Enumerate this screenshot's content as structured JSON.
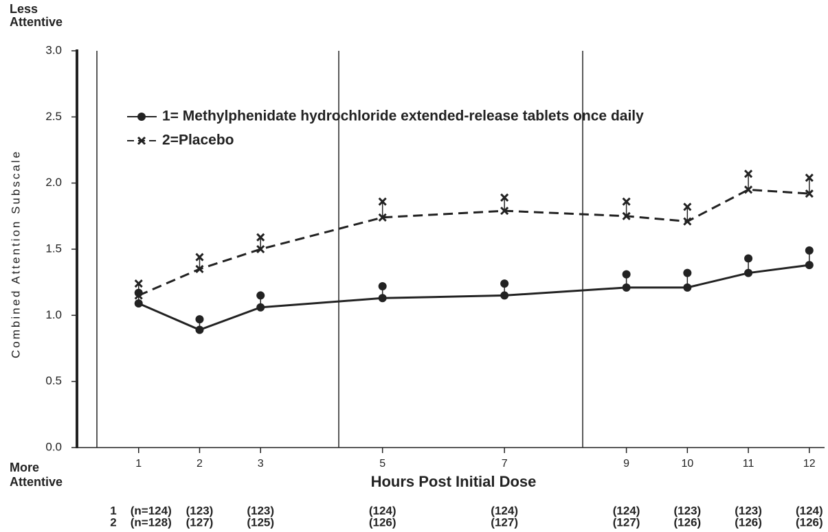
{
  "chart_data": {
    "type": "line",
    "top_label": [
      "Less",
      "Attentive"
    ],
    "bottom_label": [
      "More",
      "Attentive"
    ],
    "y_label": "Combined Attention Subscale",
    "x_label": "Hours Post Initial Dose",
    "x": [
      1,
      2,
      3,
      5,
      7,
      9,
      10,
      11,
      12
    ],
    "xlim": [
      0,
      12.25
    ],
    "xticks": [
      1,
      2,
      3,
      5,
      7,
      9,
      10,
      11,
      12
    ],
    "ylim": [
      0,
      3
    ],
    "yticks": [
      {
        "value": 0,
        "label": "0.0"
      },
      {
        "value": 0.5,
        "label": "0.5"
      },
      {
        "value": 1,
        "label": "1.0"
      },
      {
        "value": 1.5,
        "label": "1.5"
      },
      {
        "value": 2,
        "label": "2.0"
      },
      {
        "value": 2.5,
        "label": "2.5"
      },
      {
        "value": 3,
        "label": "3.0"
      }
    ],
    "series": [
      {
        "name": "1= Methylphenidate hydrochloride extended-release tablets once daily",
        "color": "#222222",
        "line_style": "solid",
        "marker": "circle",
        "values": [
          1.09,
          0.89,
          1.06,
          1.13,
          1.15,
          1.21,
          1.21,
          1.32,
          1.38
        ],
        "errors": [
          0.08,
          0.08,
          0.09,
          0.09,
          0.09,
          0.1,
          0.11,
          0.11,
          0.11
        ]
      },
      {
        "name": "2=Placebo",
        "color": "#222222",
        "line_style": "dashed",
        "marker": "x",
        "values": [
          1.15,
          1.35,
          1.5,
          1.74,
          1.79,
          1.75,
          1.71,
          1.95,
          1.92
        ],
        "errors": [
          0.09,
          0.09,
          0.09,
          0.12,
          0.1,
          0.11,
          0.11,
          0.12,
          0.12
        ]
      }
    ],
    "sample_sizes": [
      {
        "label": "1",
        "values": [
          "(n=124)",
          "(123)",
          "(123)",
          "(124)",
          "(124)",
          "(124)",
          "(123)",
          "(123)",
          "(124)"
        ]
      },
      {
        "label": "2",
        "values": [
          "(n=128)",
          "(127)",
          "(125)",
          "(126)",
          "(127)",
          "(127)",
          "(126)",
          "(126)",
          "(126)"
        ]
      }
    ]
  }
}
